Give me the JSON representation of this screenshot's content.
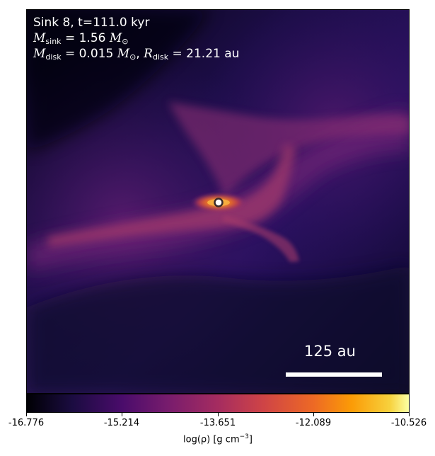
{
  "info": {
    "line1": "Sink 8, t=111.0 kyr",
    "msink_symbol": "M",
    "msink_sub": "sink",
    "msink_value": " = 1.56",
    "msink_unit": "M",
    "msink_unit_sub": "⊙",
    "mdisk_symbol": "M",
    "mdisk_sub": "disk",
    "mdisk_value": " = 0.015",
    "mdisk_unit": "M",
    "mdisk_unit_sub": "⊙",
    "rdisk_symbol": "R",
    "rdisk_sub": "disk",
    "rdisk_value": " = 21.21 au"
  },
  "scalebar": {
    "label": "125 au"
  },
  "colorbar": {
    "ticks": [
      "-16.776",
      "-15.214",
      "-13.651",
      "-12.089",
      "-10.526"
    ],
    "label_prefix": "log(ρ) [g cm",
    "label_exp": "−3",
    "label_suffix": "]",
    "colormap": "inferno"
  },
  "colors": {
    "background_dark": "#0c0828",
    "filament": "#7a2a78",
    "core": "#f07020",
    "sink_marker": "#ffffff"
  }
}
